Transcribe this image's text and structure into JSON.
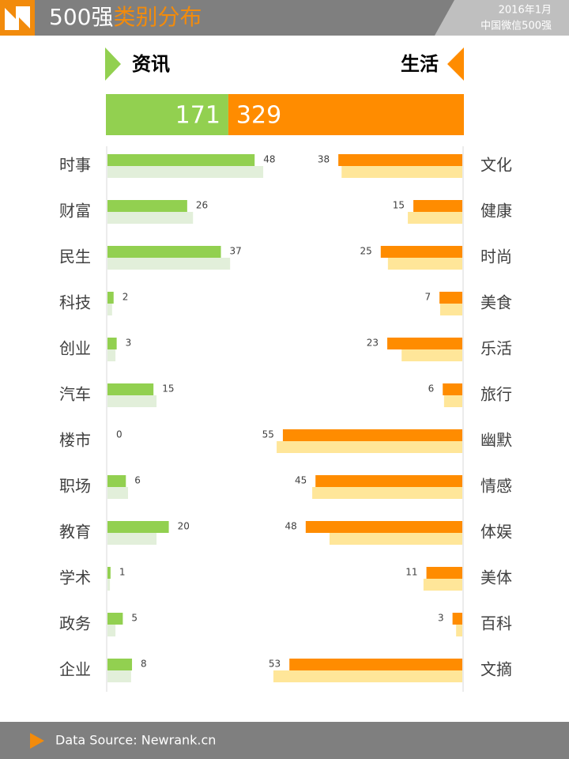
{
  "header": {
    "title_main": "500强",
    "title_highlight": "类别分布",
    "date": "2016年1月",
    "subtitle": "中国微信500强"
  },
  "chart_data": [
    {
      "type": "bar",
      "orientation": "horizontal",
      "side": "left",
      "title": "资讯",
      "total": 171,
      "color": "#92d050",
      "categories": [
        "时事",
        "财富",
        "民生",
        "科技",
        "创业",
        "汽车",
        "楼市",
        "职场",
        "教育",
        "学术",
        "政务",
        "企业"
      ],
      "series": [
        {
          "color": "#92d050",
          "values": [
            48,
            26,
            37,
            2,
            3,
            15,
            0,
            6,
            20,
            1,
            5,
            8
          ]
        },
        {
          "color": "#e2efda",
          "values": [
            50.8,
            27.9,
            40,
            1.5,
            2.6,
            16,
            0,
            6.7,
            16,
            0.8,
            2.6,
            7.7
          ]
        }
      ],
      "xlim": [
        0,
        116
      ]
    },
    {
      "type": "bar",
      "orientation": "horizontal",
      "side": "right",
      "title": "生活",
      "total": 329,
      "color": "#ff8c00",
      "categories": [
        "文化",
        "健康",
        "时尚",
        "美食",
        "乐活",
        "旅行",
        "幽默",
        "情感",
        "体娱",
        "美体",
        "百科",
        "文摘"
      ],
      "series": [
        {
          "color": "#ff8c00",
          "values": [
            38,
            15,
            25,
            7,
            23,
            6,
            55,
            45,
            48,
            11,
            3,
            53
          ]
        },
        {
          "color": "#ffe699",
          "values": [
            37,
            16.7,
            22.8,
            6.8,
            18.6,
            5.6,
            56.9,
            46,
            40.7,
            11.9,
            1.9,
            57.9
          ]
        }
      ],
      "xlim": [
        0,
        109
      ]
    }
  ],
  "footer": {
    "source": "Data Source: Newrank.cn"
  }
}
